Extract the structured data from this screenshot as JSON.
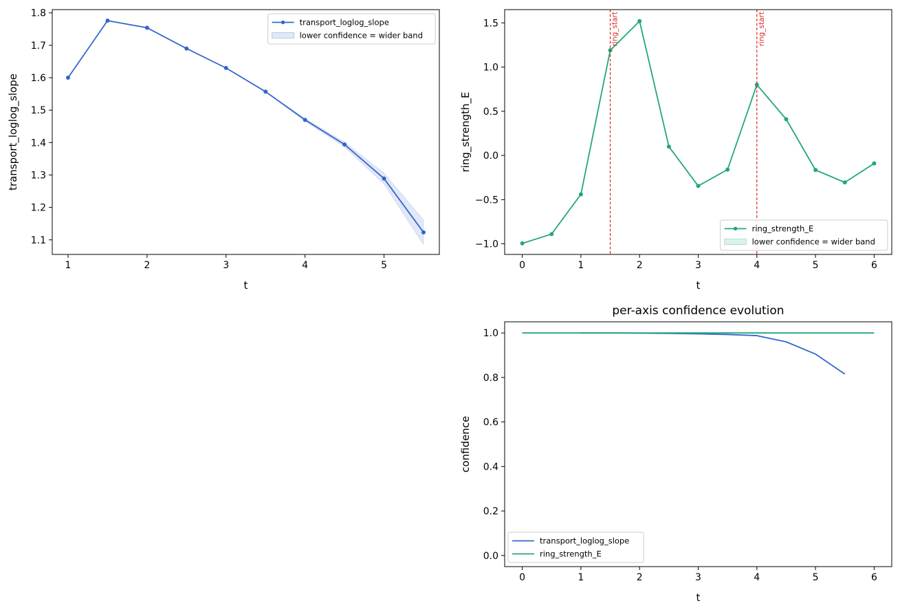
{
  "chart_data": [
    {
      "type": "line",
      "title": "",
      "xlabel": "t",
      "ylabel": "transport_loglog_slope",
      "xlim": [
        0.8,
        5.7
      ],
      "ylim": [
        1.055,
        1.81
      ],
      "xticks": [
        1,
        2,
        3,
        4,
        5
      ],
      "xtick_labels": [
        "1",
        "2",
        "3",
        "4",
        "5"
      ],
      "yticks": [
        1.1,
        1.2,
        1.3,
        1.4,
        1.5,
        1.6,
        1.7,
        1.8
      ],
      "ytick_labels": [
        "1.1",
        "1.2",
        "1.3",
        "1.4",
        "1.5",
        "1.6",
        "1.7",
        "1.8"
      ],
      "grid": false,
      "legend_position": "upper-right",
      "series": [
        {
          "name": "transport_loglog_slope",
          "color": "#3366cc",
          "markers": true,
          "x": [
            1,
            1.5,
            2,
            2.5,
            3,
            3.5,
            4,
            4.5,
            5,
            5.5
          ],
          "y": [
            1.6,
            1.776,
            1.754,
            1.69,
            1.63,
            1.557,
            1.47,
            1.394,
            1.289,
            1.123
          ],
          "band_lower": [
            1.6,
            1.776,
            1.754,
            1.69,
            1.63,
            1.556,
            1.466,
            1.387,
            1.272,
            1.085
          ],
          "band_upper": [
            1.6,
            1.776,
            1.754,
            1.69,
            1.63,
            1.558,
            1.474,
            1.401,
            1.306,
            1.161
          ]
        }
      ],
      "band_legend": "lower confidence = wider band",
      "band_color": "#3366cc",
      "vlines": []
    },
    {
      "type": "line",
      "title": "",
      "xlabel": "t",
      "ylabel": "ring_strength_E",
      "xlim": [
        -0.3,
        6.3
      ],
      "ylim": [
        -1.12,
        1.65
      ],
      "xticks": [
        0,
        1,
        2,
        3,
        4,
        5,
        6
      ],
      "xtick_labels": [
        "0",
        "1",
        "2",
        "3",
        "4",
        "5",
        "6"
      ],
      "yticks": [
        -1.0,
        -0.5,
        0.0,
        0.5,
        1.0,
        1.5
      ],
      "ytick_labels": [
        "−1.0",
        "−0.5",
        "0.0",
        "0.5",
        "1.0",
        "1.5"
      ],
      "grid": false,
      "legend_position": "lower-right",
      "series": [
        {
          "name": "ring_strength_E",
          "color": "#22a67a",
          "markers": true,
          "x": [
            0,
            0.5,
            1,
            1.5,
            2,
            2.5,
            3,
            3.5,
            4,
            4.5,
            5,
            5.5,
            6
          ],
          "y": [
            -0.995,
            -0.89,
            -0.44,
            1.19,
            1.52,
            0.1,
            -0.345,
            -0.16,
            0.8,
            0.41,
            -0.165,
            -0.305,
            -0.09
          ],
          "band_lower": [
            -0.995,
            -0.89,
            -0.44,
            1.19,
            1.52,
            0.1,
            -0.345,
            -0.16,
            0.8,
            0.41,
            -0.165,
            -0.305,
            -0.09
          ],
          "band_upper": [
            -0.995,
            -0.89,
            -0.44,
            1.19,
            1.52,
            0.1,
            -0.345,
            -0.16,
            0.8,
            0.41,
            -0.165,
            -0.305,
            -0.09
          ]
        }
      ],
      "band_legend": "lower confidence = wider band",
      "band_color": "#22a67a",
      "vlines": [
        {
          "x": 1.5,
          "label": "ring_start",
          "color": "#d62728"
        },
        {
          "x": 4,
          "label": "ring_start",
          "color": "#d62728"
        }
      ]
    },
    {
      "type": "line",
      "title": "per-axis confidence evolution",
      "xlabel": "t",
      "ylabel": "confidence",
      "xlim": [
        -0.3,
        6.3
      ],
      "ylim": [
        -0.05,
        1.05
      ],
      "xticks": [
        0,
        1,
        2,
        3,
        4,
        5,
        6
      ],
      "xtick_labels": [
        "0",
        "1",
        "2",
        "3",
        "4",
        "5",
        "6"
      ],
      "yticks": [
        0.0,
        0.2,
        0.4,
        0.6,
        0.8,
        1.0
      ],
      "ytick_labels": [
        "0.0",
        "0.2",
        "0.4",
        "0.6",
        "0.8",
        "1.0"
      ],
      "grid": false,
      "legend_position": "lower-left",
      "series": [
        {
          "name": "transport_loglog_slope",
          "color": "#3366cc",
          "markers": false,
          "x": [
            1,
            1.5,
            2,
            2.5,
            3,
            3.5,
            4,
            4.5,
            5,
            5.5
          ],
          "y": [
            1.0,
            1.0,
            0.999,
            0.998,
            0.996,
            0.993,
            0.988,
            0.96,
            0.905,
            0.815
          ]
        },
        {
          "name": "ring_strength_E",
          "color": "#22a67a",
          "markers": false,
          "x": [
            0,
            0.5,
            1,
            1.5,
            2,
            2.5,
            3,
            3.5,
            4,
            4.5,
            5,
            5.5,
            6
          ],
          "y": [
            1,
            1,
            1,
            1,
            1,
            1,
            1,
            1,
            1,
            1,
            1,
            1,
            1
          ]
        }
      ],
      "vlines": []
    }
  ]
}
